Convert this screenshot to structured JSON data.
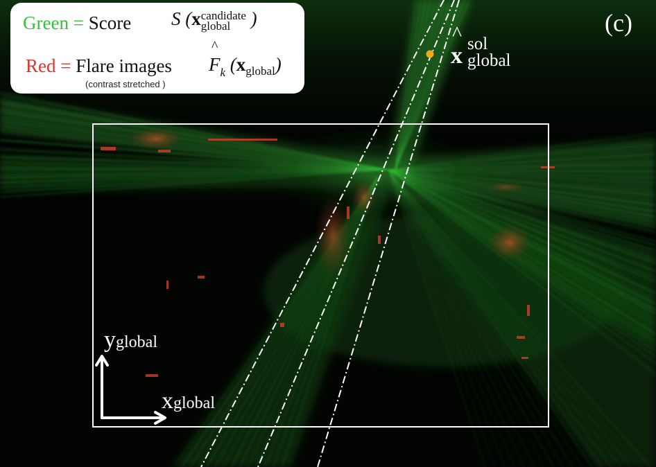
{
  "panel_label": "(c)",
  "legend": {
    "green_word": "Green",
    "green_equals": "=",
    "green_text": "Score",
    "green_formula_prefix": "S (",
    "green_formula_bold": "x",
    "green_formula_sup": "candidate",
    "green_formula_sub": "global",
    "green_formula_suffix": ")",
    "red_word": "Red",
    "red_equals": "=",
    "red_text": "Flare images",
    "red_formula_symbol": "F",
    "red_formula_hat": "^",
    "red_formula_sub": "k",
    "red_formula_open": "(",
    "red_formula_bold": "x",
    "red_formula_sub2": "global",
    "red_formula_close": ")",
    "note": "(contrast stretched )"
  },
  "solution_point": {
    "hat": "^",
    "symbol": "x",
    "sup": "sol",
    "sub": "global",
    "color": "#f2a81d"
  },
  "axes": {
    "y_symbol": "y",
    "y_sub": "global",
    "x_symbol": "x",
    "x_sub": "global"
  },
  "colors": {
    "score_green": "#35c23a",
    "flare_red": "#e0342a",
    "frame": "#ffffff",
    "background": "#020402"
  }
}
